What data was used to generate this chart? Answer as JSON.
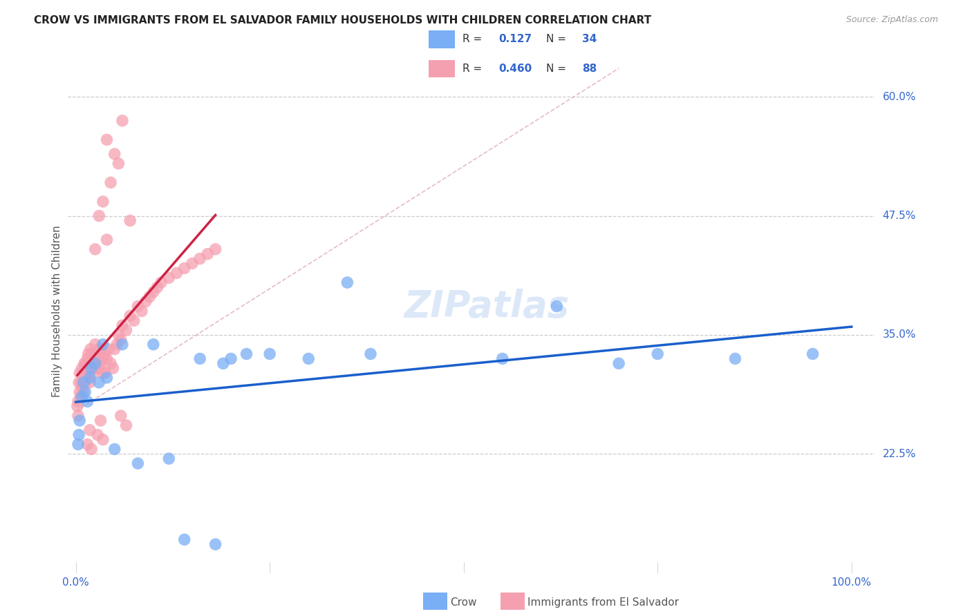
{
  "title": "CROW VS IMMIGRANTS FROM EL SALVADOR FAMILY HOUSEHOLDS WITH CHILDREN CORRELATION CHART",
  "source": "Source: ZipAtlas.com",
  "ylabel": "Family Households with Children",
  "yticks": [
    22.5,
    35.0,
    47.5,
    60.0
  ],
  "ytick_labels": [
    "22.5%",
    "35.0%",
    "47.5%",
    "60.0%"
  ],
  "crow_R": "0.127",
  "crow_N": "34",
  "sv_R": "0.460",
  "sv_N": "88",
  "blue_color": "#7aaef5",
  "pink_color": "#f5a0b0",
  "blue_line_color": "#1a5fcc",
  "pink_line_color": "#cc2244",
  "dashed_line_color": "#e0b0bb",
  "watermark_color": "#dce8f8",
  "crow_x": [
    0.3,
    0.4,
    0.5,
    0.8,
    1.0,
    1.2,
    1.5,
    1.8,
    2.0,
    2.5,
    3.0,
    3.5,
    4.0,
    5.0,
    6.0,
    8.0,
    10.0,
    12.0,
    14.0,
    16.0,
    18.0,
    19.0,
    20.0,
    22.0,
    25.0,
    30.0,
    35.0,
    38.0,
    55.0,
    62.0,
    70.0,
    75.0,
    85.0,
    95.0
  ],
  "crow_y": [
    23.5,
    24.5,
    26.0,
    28.5,
    30.0,
    29.0,
    28.0,
    30.5,
    31.5,
    32.0,
    30.0,
    34.0,
    30.5,
    23.0,
    34.0,
    21.5,
    34.0,
    22.0,
    13.5,
    32.5,
    13.0,
    32.0,
    32.5,
    33.0,
    33.0,
    32.5,
    40.5,
    33.0,
    32.5,
    38.0,
    32.0,
    33.0,
    32.5,
    33.0
  ],
  "sv_x": [
    0.2,
    0.3,
    0.3,
    0.4,
    0.5,
    0.5,
    0.6,
    0.7,
    0.8,
    0.8,
    0.9,
    1.0,
    1.0,
    1.1,
    1.2,
    1.2,
    1.3,
    1.4,
    1.5,
    1.5,
    1.6,
    1.7,
    1.8,
    1.8,
    1.9,
    2.0,
    2.0,
    2.1,
    2.2,
    2.3,
    2.4,
    2.5,
    2.5,
    2.6,
    2.7,
    2.8,
    3.0,
    3.0,
    3.2,
    3.3,
    3.5,
    3.5,
    3.7,
    3.8,
    4.0,
    4.2,
    4.5,
    4.8,
    5.0,
    5.3,
    5.5,
    5.8,
    6.0,
    6.5,
    7.0,
    7.5,
    8.0,
    8.5,
    9.0,
    9.5,
    10.0,
    10.5,
    11.0,
    12.0,
    13.0,
    14.0,
    15.0,
    16.0,
    17.0,
    18.0,
    4.0,
    3.5,
    4.5,
    5.0,
    6.0,
    2.5,
    3.0,
    4.0,
    5.5,
    7.0,
    2.0,
    1.5,
    3.5,
    2.8,
    1.8,
    6.5,
    3.2,
    5.8
  ],
  "sv_y": [
    27.5,
    28.0,
    26.5,
    30.0,
    29.0,
    31.0,
    28.5,
    30.0,
    29.5,
    31.5,
    30.0,
    31.0,
    29.0,
    32.0,
    31.5,
    30.0,
    32.0,
    31.0,
    32.5,
    30.5,
    33.0,
    31.0,
    32.0,
    30.0,
    33.5,
    31.5,
    33.0,
    32.0,
    31.0,
    32.5,
    33.0,
    32.0,
    34.0,
    31.5,
    33.0,
    32.5,
    33.5,
    31.5,
    32.0,
    33.5,
    31.0,
    32.5,
    33.0,
    31.0,
    32.5,
    33.5,
    32.0,
    31.5,
    33.5,
    34.0,
    35.0,
    34.5,
    36.0,
    35.5,
    37.0,
    36.5,
    38.0,
    37.5,
    38.5,
    39.0,
    39.5,
    40.0,
    40.5,
    41.0,
    41.5,
    42.0,
    42.5,
    43.0,
    43.5,
    44.0,
    45.0,
    49.0,
    51.0,
    54.0,
    57.5,
    44.0,
    47.5,
    55.5,
    53.0,
    47.0,
    23.0,
    23.5,
    24.0,
    24.5,
    25.0,
    25.5,
    26.0,
    26.5
  ]
}
